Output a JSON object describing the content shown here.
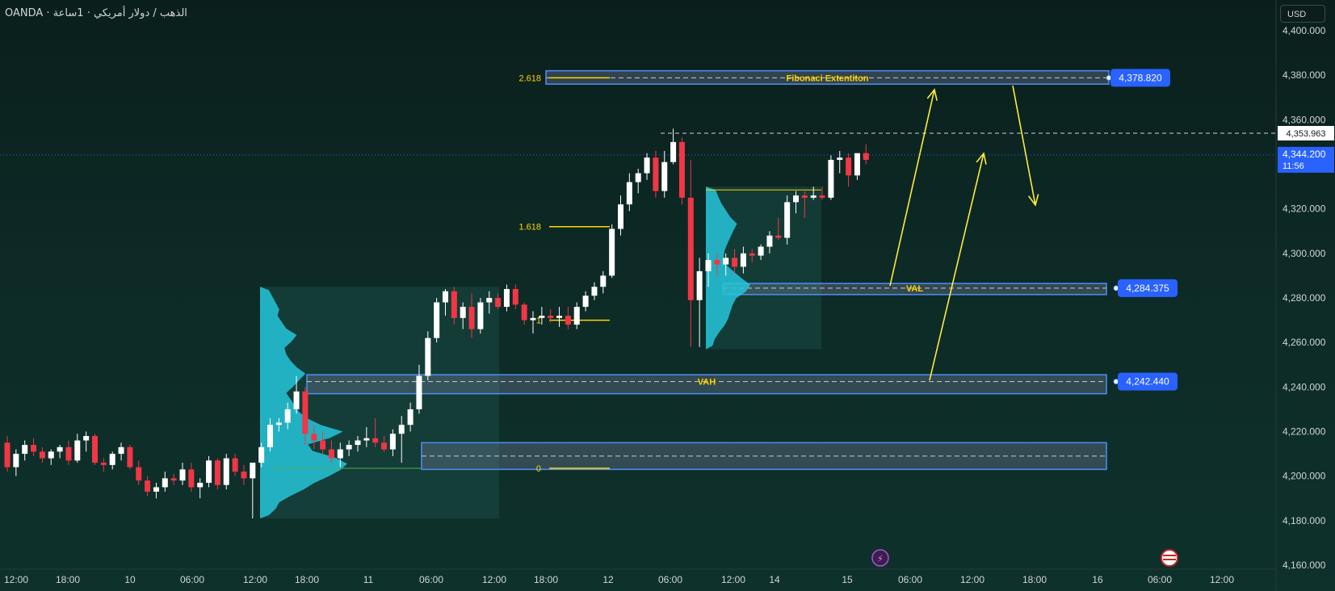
{
  "header": {
    "symbol": "OANDA · الذهب / دولار أمريكي · 1ساعة"
  },
  "price_axis": {
    "currency_button": "USD"
  },
  "colors": {
    "bull": "#ffffff",
    "bear": "#f23645",
    "profile": "#26c6da",
    "zone_border": "#4f8ef7",
    "label_bg": "#2962ff",
    "fib": "#ffd400",
    "arrow": "#ffeb3b"
  },
  "chart_data": {
    "type": "candlestick",
    "ylim": [
      4160,
      4400
    ],
    "y_ticks": [
      "4,400.000",
      "4,380.000",
      "4,360.000",
      "4,340.000",
      "4,320.000",
      "4,300.000",
      "4,280.000",
      "4,260.000",
      "4,240.000",
      "4,220.000",
      "4,200.000",
      "4,180.000",
      "4,160.000"
    ],
    "y_tick_values": [
      4400,
      4380,
      4360,
      4340,
      4320,
      4300,
      4280,
      4260,
      4240,
      4220,
      4200,
      4180,
      4160
    ],
    "x_ticks": [
      "12:00",
      "18:00",
      "10",
      "06:00",
      "12:00",
      "18:00",
      "11",
      "06:00",
      "12:00",
      "18:00",
      "12",
      "06:00",
      "12:00",
      "14",
      "15",
      "06:00",
      "12:00",
      "18:00",
      "16",
      "06:00",
      "12:00"
    ],
    "candles": [
      [
        4215,
        4218,
        4202,
        4204
      ],
      [
        4204,
        4212,
        4200,
        4210
      ],
      [
        4210,
        4216,
        4207,
        4214
      ],
      [
        4214,
        4217,
        4209,
        4211
      ],
      [
        4211,
        4213,
        4206,
        4208
      ],
      [
        4208,
        4212,
        4205,
        4211
      ],
      [
        4211,
        4214,
        4208,
        4213
      ],
      [
        4213,
        4216,
        4205,
        4207
      ],
      [
        4207,
        4219,
        4206,
        4216
      ],
      [
        4216,
        4220,
        4211,
        4218
      ],
      [
        4218,
        4219,
        4205,
        4206
      ],
      [
        4206,
        4208,
        4202,
        4205
      ],
      [
        4205,
        4211,
        4203,
        4210
      ],
      [
        4210,
        4215,
        4207,
        4213
      ],
      [
        4213,
        4214,
        4203,
        4204
      ],
      [
        4204,
        4207,
        4196,
        4198
      ],
      [
        4198,
        4200,
        4191,
        4193
      ],
      [
        4193,
        4197,
        4190,
        4195
      ],
      [
        4195,
        4202,
        4193,
        4199
      ],
      [
        4199,
        4201,
        4196,
        4198
      ],
      [
        4198,
        4206,
        4196,
        4203
      ],
      [
        4203,
        4206,
        4193,
        4195
      ],
      [
        4195,
        4199,
        4190,
        4197
      ],
      [
        4197,
        4209,
        4195,
        4207
      ],
      [
        4207,
        4208,
        4194,
        4196
      ],
      [
        4196,
        4210,
        4194,
        4208
      ],
      [
        4208,
        4210,
        4200,
        4202
      ],
      [
        4202,
        4205,
        4196,
        4199
      ],
      [
        4199,
        4206,
        4181,
        4206
      ],
      [
        4206,
        4215,
        4204,
        4213
      ],
      [
        4213,
        4226,
        4211,
        4223
      ],
      [
        4223,
        4226,
        4220,
        4224
      ],
      [
        4224,
        4233,
        4221,
        4230
      ],
      [
        4230,
        4245,
        4228,
        4238
      ],
      [
        4238,
        4240,
        4214,
        4219
      ],
      [
        4219,
        4223,
        4212,
        4216
      ],
      [
        4216,
        4220,
        4210,
        4212
      ],
      [
        4212,
        4216,
        4206,
        4208
      ],
      [
        4208,
        4215,
        4204,
        4212
      ],
      [
        4212,
        4216,
        4209,
        4214
      ],
      [
        4214,
        4218,
        4211,
        4216
      ],
      [
        4216,
        4222,
        4213,
        4217
      ],
      [
        4217,
        4226,
        4213,
        4215
      ],
      [
        4215,
        4218,
        4211,
        4212
      ],
      [
        4212,
        4221,
        4209,
        4219
      ],
      [
        4219,
        4227,
        4206,
        4223
      ],
      [
        4223,
        4233,
        4220,
        4230
      ],
      [
        4230,
        4250,
        4228,
        4245
      ],
      [
        4245,
        4265,
        4243,
        4262
      ],
      [
        4262,
        4280,
        4260,
        4278
      ],
      [
        4278,
        4284,
        4272,
        4283
      ],
      [
        4283,
        4285,
        4268,
        4271
      ],
      [
        4271,
        4278,
        4266,
        4276
      ],
      [
        4276,
        4282,
        4262,
        4266
      ],
      [
        4266,
        4280,
        4264,
        4278
      ],
      [
        4278,
        4283,
        4273,
        4280
      ],
      [
        4280,
        4282,
        4275,
        4276
      ],
      [
        4276,
        4286,
        4274,
        4284
      ],
      [
        4284,
        4286,
        4275,
        4277
      ],
      [
        4277,
        4278,
        4268,
        4270
      ],
      [
        4270,
        4274,
        4264,
        4271
      ],
      [
        4271,
        4276,
        4268,
        4272
      ],
      [
        4272,
        4275,
        4269,
        4271
      ],
      [
        4271,
        4276,
        4267,
        4272
      ],
      [
        4272,
        4276,
        4266,
        4268
      ],
      [
        4268,
        4278,
        4266,
        4276
      ],
      [
        4276,
        4283,
        4274,
        4281
      ],
      [
        4281,
        4287,
        4279,
        4285
      ],
      [
        4285,
        4292,
        4282,
        4290
      ],
      [
        4290,
        4313,
        4289,
        4311
      ],
      [
        4311,
        4326,
        4308,
        4322
      ],
      [
        4322,
        4336,
        4319,
        4332
      ],
      [
        4332,
        4338,
        4327,
        4336
      ],
      [
        4336,
        4345,
        4333,
        4343
      ],
      [
        4343,
        4346,
        4325,
        4328
      ],
      [
        4328,
        4346,
        4325,
        4341
      ],
      [
        4341,
        4356,
        4340,
        4350
      ],
      [
        4350,
        4352,
        4322,
        4325
      ],
      [
        4325,
        4342,
        4258,
        4279
      ],
      [
        4279,
        4298,
        4258,
        4292
      ],
      [
        4292,
        4300,
        4285,
        4297
      ],
      [
        4297,
        4300,
        4290,
        4295
      ],
      [
        4295,
        4300,
        4290,
        4298
      ],
      [
        4298,
        4302,
        4291,
        4294
      ],
      [
        4294,
        4303,
        4291,
        4300
      ],
      [
        4300,
        4302,
        4296,
        4299
      ],
      [
        4299,
        4304,
        4297,
        4303
      ],
      [
        4303,
        4310,
        4300,
        4308
      ],
      [
        4308,
        4316,
        4306,
        4307
      ],
      [
        4307,
        4326,
        4304,
        4323
      ],
      [
        4323,
        4328,
        4318,
        4326
      ],
      [
        4326,
        4328,
        4316,
        4325
      ],
      [
        4325,
        4330,
        4324,
        4326
      ],
      [
        4326,
        4330,
        4324,
        4325
      ],
      [
        4325,
        4344,
        4324,
        4342
      ],
      [
        4342,
        4346,
        4336,
        4343
      ],
      [
        4343,
        4345,
        4330,
        4335
      ],
      [
        4335,
        4344,
        4333,
        4345
      ],
      [
        4345,
        4349,
        4340,
        4342
      ]
    ],
    "volume_profiles": [
      {
        "price_from": 4181,
        "price_to": 4285,
        "peak_price": 4214,
        "shape": [
          0.1,
          0.18,
          0.22,
          0.35,
          0.5,
          0.62,
          0.78,
          0.92,
          1.0,
          0.85,
          0.6,
          0.55,
          0.8,
          0.95,
          0.7,
          0.55,
          0.45,
          0.4,
          0.35,
          0.3,
          0.38,
          0.45,
          0.52,
          0.42,
          0.35,
          0.3,
          0.28,
          0.36,
          0.42,
          0.3,
          0.25,
          0.2,
          0.22,
          0.18,
          0.14,
          0.1
        ]
      },
      {
        "price_from": 4257,
        "price_to": 4330,
        "peak_price": 4296,
        "shape": [
          0.15,
          0.2,
          0.3,
          0.42,
          0.5,
          0.55,
          0.6,
          0.68,
          0.9,
          1.0,
          0.8,
          0.62,
          0.45,
          0.4,
          0.42,
          0.48,
          0.55,
          0.62,
          0.7,
          0.55,
          0.45,
          0.35,
          0.28,
          0.22
        ]
      }
    ],
    "zones": [
      {
        "name": "Fibonaci Extentiton",
        "price_top": 4382,
        "price_bottom": 4376,
        "line_price": 4378.82,
        "label": "4,378.820"
      },
      {
        "name": "VAL",
        "price_top": 4286.5,
        "price_bottom": 4281.5,
        "line_price": 4284.375,
        "label": "4,284.375"
      },
      {
        "name": "VAH",
        "price_top": 4245.5,
        "price_bottom": 4237,
        "line_price": 4242.44,
        "label": "4,242.440"
      },
      {
        "name": "",
        "price_top": 4215,
        "price_bottom": 4203,
        "line_price": 4209,
        "label": ""
      }
    ],
    "fib_levels": [
      {
        "label": "2.618",
        "price": 4378.82
      },
      {
        "label": "1.618",
        "price": 4312
      },
      {
        "label": "1",
        "price": 4270
      },
      {
        "label": "0",
        "price": 4203.5
      }
    ],
    "reference_line": {
      "price": 4353.963,
      "label": "4,353.963"
    },
    "current_price": {
      "price": 4344.2,
      "label": "4,344.200",
      "countdown": "11:56"
    },
    "annotations": [
      "⚡"
    ]
  }
}
